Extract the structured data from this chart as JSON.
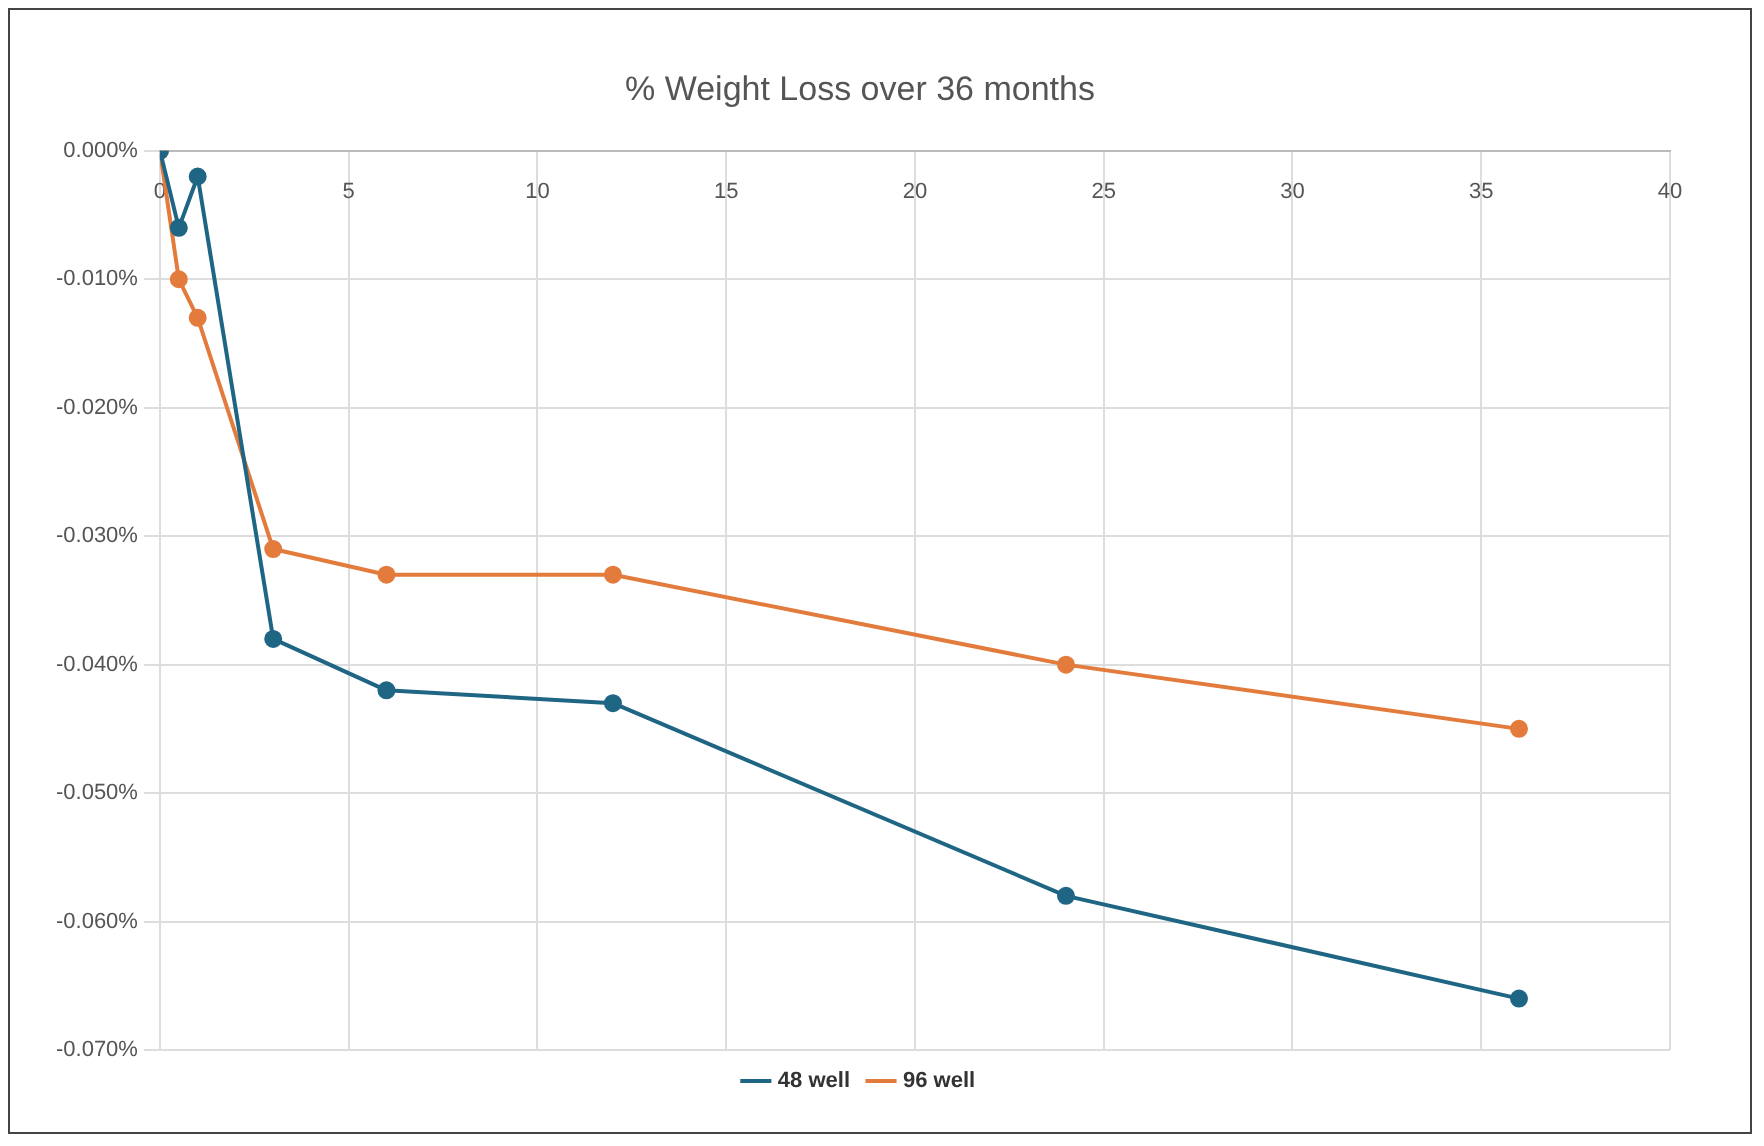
{
  "chart_data": {
    "type": "line",
    "title": "% Weight Loss over 36 months",
    "x": [
      0,
      0.5,
      1,
      3,
      6,
      12,
      24,
      36
    ],
    "series": [
      {
        "name": "48 well",
        "color": "#1f6584",
        "values": [
          0,
          -0.006,
          -0.002,
          -0.038,
          -0.042,
          -0.043,
          -0.058,
          -0.066
        ]
      },
      {
        "name": "96 well",
        "color": "#e27b3c",
        "values": [
          0,
          -0.01,
          -0.013,
          -0.031,
          -0.033,
          -0.033,
          -0.04,
          -0.045
        ]
      }
    ],
    "xlim": [
      0,
      40
    ],
    "xticks": [
      0,
      5,
      10,
      15,
      20,
      25,
      30,
      35,
      40
    ],
    "ylim": [
      -0.07,
      0
    ],
    "yticks": [
      {
        "value": 0,
        "label": "0.000%"
      },
      {
        "value": -0.01,
        "label": "-0.010%"
      },
      {
        "value": -0.02,
        "label": "-0.020%"
      },
      {
        "value": -0.03,
        "label": "-0.030%"
      },
      {
        "value": -0.04,
        "label": "-0.040%"
      },
      {
        "value": -0.05,
        "label": "-0.050%"
      },
      {
        "value": -0.06,
        "label": "-0.060%"
      },
      {
        "value": -0.07,
        "label": "-0.070%"
      }
    ],
    "grid": true,
    "legend": "bottom",
    "marker": "circle",
    "line_style": "solid"
  }
}
